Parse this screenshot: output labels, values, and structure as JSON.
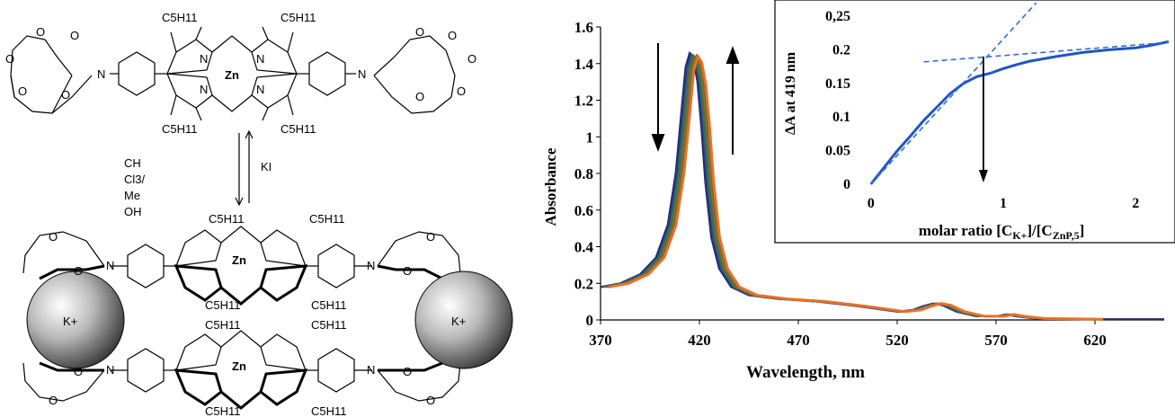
{
  "scheme": {
    "substituent": "C5H11",
    "metal": "Zn",
    "nitrogen": "N",
    "oxygen": "O",
    "reagent_forward_lines": [
      "CH",
      "Cl3/",
      "Me",
      "OH"
    ],
    "reagent_reverse": "KI",
    "cation": "K+"
  },
  "colors": {
    "series_dark": "#1f2a6b",
    "series_navy": "#2a3d8a",
    "series_teal": "#2f6b6b",
    "series_green": "#556b2f",
    "series_olive": "#6b7a3a",
    "series_brown": "#8a5a2a",
    "series_orange": "#e8702a",
    "inset_line": "#1f56c7",
    "tangent": "#2f6fd6"
  },
  "chart_data": [
    {
      "type": "line",
      "xlabel": "Wavelength, nm",
      "ylabel": "Absorbance",
      "xlim": [
        370,
        655
      ],
      "ylim": [
        0,
        1.6
      ],
      "xticks": [
        370,
        420,
        470,
        520,
        570,
        620
      ],
      "yticks": [
        0,
        0.2,
        0.4,
        0.6,
        0.8,
        1,
        1.2,
        1.4,
        1.6
      ],
      "ytick_labels": [
        "0",
        "0.2",
        "0.4",
        "0.6",
        "0.8",
        "1",
        "1.2",
        "1.4",
        "1.6"
      ],
      "grid": false,
      "annotations": [
        "arrow down near 395 nm",
        "arrow up near 432 nm"
      ],
      "base_points": [
        [
          370,
          0.18
        ],
        [
          380,
          0.2
        ],
        [
          390,
          0.25
        ],
        [
          398,
          0.34
        ],
        [
          404,
          0.52
        ],
        [
          408,
          0.8
        ],
        [
          411,
          1.15
        ],
        [
          413,
          1.38
        ],
        [
          415,
          1.455
        ],
        [
          417,
          1.42
        ],
        [
          419,
          1.3
        ],
        [
          421,
          1.05
        ],
        [
          423,
          0.75
        ],
        [
          426,
          0.45
        ],
        [
          430,
          0.28
        ],
        [
          436,
          0.18
        ],
        [
          445,
          0.135
        ],
        [
          460,
          0.115
        ],
        [
          480,
          0.1
        ],
        [
          500,
          0.075
        ],
        [
          520,
          0.045
        ],
        [
          528,
          0.055
        ],
        [
          533,
          0.075
        ],
        [
          538,
          0.09
        ],
        [
          543,
          0.08
        ],
        [
          550,
          0.045
        ],
        [
          560,
          0.02
        ],
        [
          570,
          0.02
        ],
        [
          575,
          0.03
        ],
        [
          580,
          0.02
        ],
        [
          590,
          0.008
        ],
        [
          620,
          0.004
        ],
        [
          655,
          0.004
        ]
      ],
      "series": [
        {
          "shift": 0.0,
          "peak": 1.455
        },
        {
          "shift": 0.7,
          "peak": 1.45
        },
        {
          "shift": 1.4,
          "peak": 1.445
        },
        {
          "shift": 2.1,
          "peak": 1.44
        },
        {
          "shift": 2.8,
          "peak": 1.435
        },
        {
          "shift": 3.5,
          "peak": 1.44
        },
        {
          "shift": 4.2,
          "peak": 1.44
        }
      ]
    },
    {
      "type": "line",
      "xlabel": "molar ratio [CK+]/[CZnP,5]",
      "ylabel": "ΔA at 419 nm",
      "xlim": [
        -0.1,
        2.25
      ],
      "ylim": [
        0,
        0.25
      ],
      "xticks": [
        0,
        1,
        2
      ],
      "xtick_labels": [
        "0",
        "1",
        "2"
      ],
      "yticks": [
        0,
        0.05,
        0.1,
        0.15,
        0.2,
        0.25
      ],
      "ytick_labels": [
        "0",
        "0.05",
        "0.1",
        "0.15",
        "0.2",
        "0,25"
      ],
      "grid": false,
      "series": [
        {
          "x": [
            0,
            0.1,
            0.2,
            0.3,
            0.4,
            0.5,
            0.6,
            0.7,
            0.8,
            0.9,
            1.0,
            1.1,
            1.2,
            1.4,
            1.6,
            1.8,
            2.0,
            2.1,
            2.25
          ],
          "y": [
            0,
            0.025,
            0.05,
            0.072,
            0.095,
            0.115,
            0.135,
            0.15,
            0.16,
            0.165,
            0.172,
            0.178,
            0.183,
            0.19,
            0.196,
            0.2,
            0.203,
            0.206,
            0.212
          ]
        }
      ],
      "tangent_initial": [
        [
          0.0,
          0.0
        ],
        [
          1.25,
          0.27
        ]
      ],
      "tangent_plateau": [
        [
          0.4,
          0.182
        ],
        [
          2.25,
          0.211
        ]
      ],
      "equivalence_x": 0.85,
      "equivalence_y": 0.19
    }
  ]
}
